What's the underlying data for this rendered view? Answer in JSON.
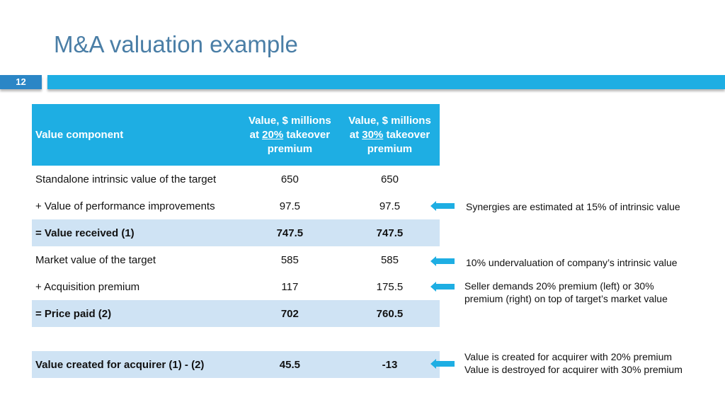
{
  "slide": {
    "title": "M&A valuation example",
    "number": "12"
  },
  "table": {
    "header": {
      "component": "Value component",
      "col_line1": "Value, $ millions",
      "col_at": "at",
      "col1_pct": "20%",
      "col2_pct": "30%",
      "col_tail": "takeover",
      "col_premium": "premium"
    },
    "rows": [
      {
        "label": "Standalone intrinsic value of the target",
        "v20": "650",
        "v30": "650"
      },
      {
        "label": "+ Value of performance improvements",
        "v20": "97.5",
        "v30": "97.5"
      },
      {
        "label": "= Value received (1)",
        "v20": "747.5",
        "v30": "747.5"
      },
      {
        "label": "Market value of the target",
        "v20": "585",
        "v30": "585"
      },
      {
        "label": "+ Acquisition premium",
        "v20": "117",
        "v30": "175.5"
      },
      {
        "label": "= Price paid (2)",
        "v20": "702",
        "v30": "760.5"
      },
      {
        "label": "Value created for acquirer (1) - (2)",
        "v20": "45.5",
        "v30": "-13"
      }
    ]
  },
  "notes": {
    "synergies": "Synergies are estimated at 15% of intrinsic value",
    "undervaluation": "10% undervaluation of company’s intrinsic value",
    "premium_line1": "Seller demands 20% premium (left) or 30%",
    "premium_line2": "premium (right) on top of target’s market value",
    "created_line1": "Value is created for acquirer with 20% premium",
    "created_line2": "Value is destroyed for acquirer with 30% premium"
  },
  "colors": {
    "title": "#4a7ea6",
    "header_bg": "#1eaee3",
    "shade_bg": "#cfe3f4",
    "arrow": "#1eaee3"
  }
}
